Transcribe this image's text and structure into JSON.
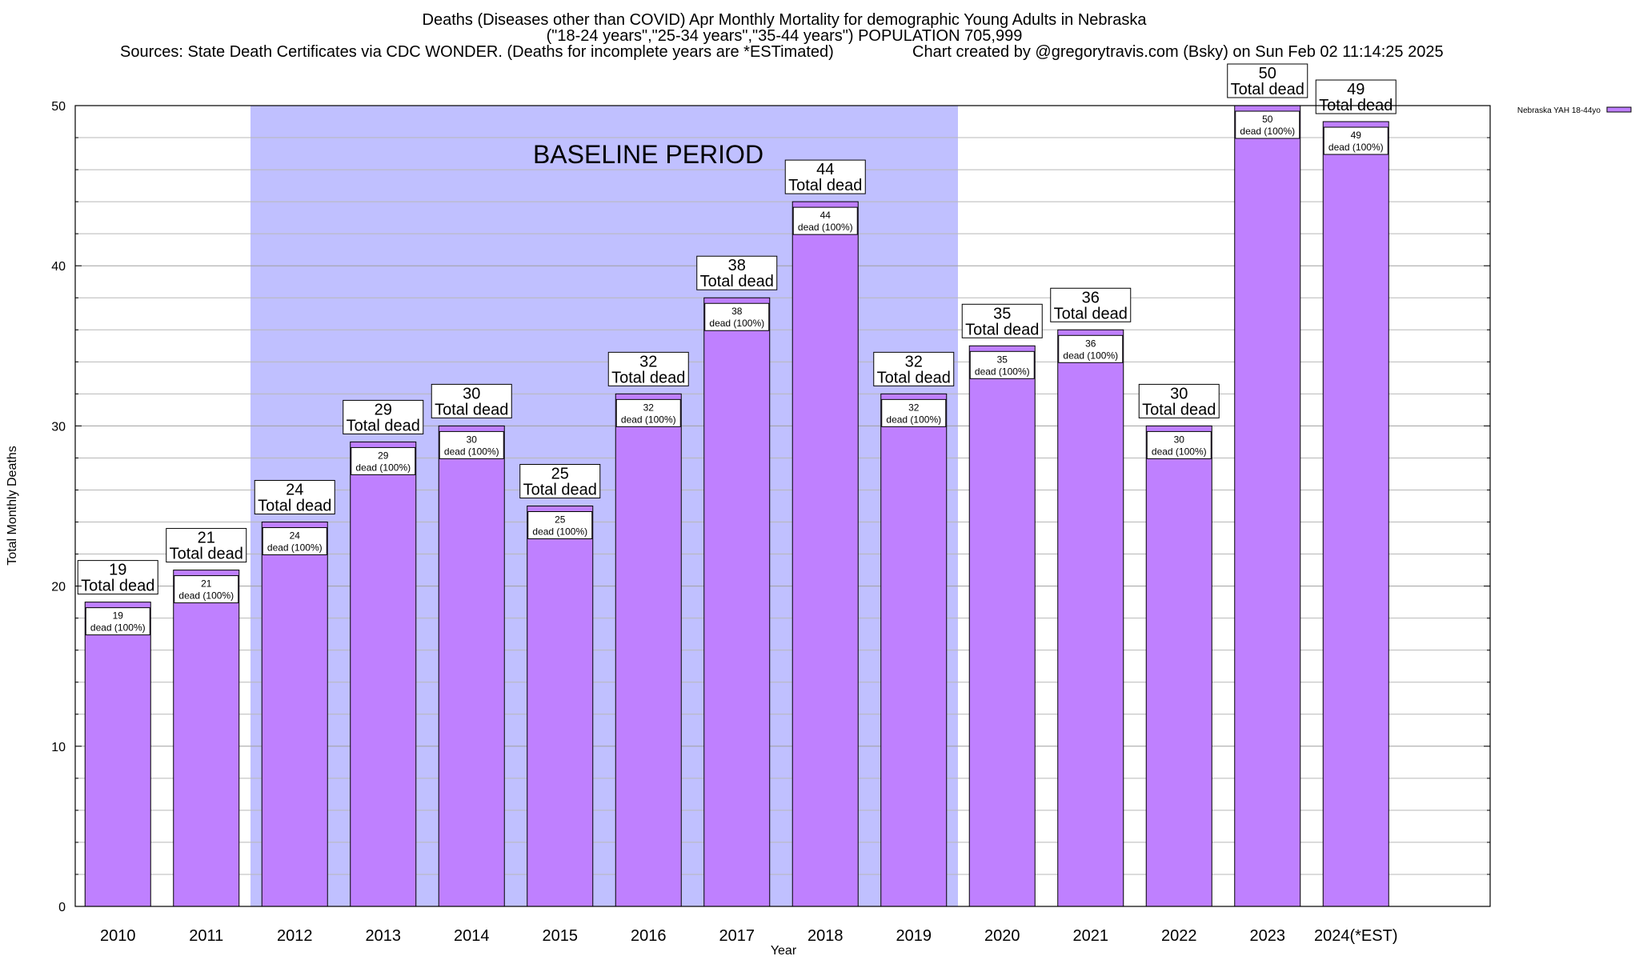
{
  "chart_data": {
    "type": "bar",
    "title": "Deaths (Diseases other than COVID) Apr Monthly Mortality for demographic Young Adults in Nebraska",
    "subtitle": "(\"18-24 years\",\"25-34 years\",\"35-44 years\") POPULATION 705,999",
    "sources": "Sources: State Death Certificates via CDC WONDER. (Deaths for incomplete years are *ESTimated)",
    "credit": "Chart created by @gregorytravis.com (Bsky) on Sun Feb 02 11:14:25 2025",
    "xlabel": "Year",
    "ylabel": "Total Monthly Deaths",
    "ylim": [
      0,
      50
    ],
    "yticks": [
      0,
      10,
      20,
      30,
      40,
      50
    ],
    "grid": true,
    "legend_position": "top-right",
    "categories": [
      "2010",
      "2011",
      "2012",
      "2013",
      "2014",
      "2015",
      "2016",
      "2017",
      "2018",
      "2019",
      "2020",
      "2021",
      "2022",
      "2023",
      "2024(*EST)"
    ],
    "series": [
      {
        "name": "Nebraska YAH 18-44yo",
        "color": "#bf80ff",
        "values": [
          19,
          21,
          24,
          29,
          30,
          25,
          32,
          38,
          44,
          32,
          35,
          36,
          30,
          50,
          49
        ]
      }
    ],
    "total_label_suffix": "Total dead",
    "inner_label_suffix": "dead (100%)",
    "baseline": {
      "label": "BASELINE PERIOD",
      "from": "2012",
      "to": "2019",
      "color": "#c0c0ff"
    }
  }
}
